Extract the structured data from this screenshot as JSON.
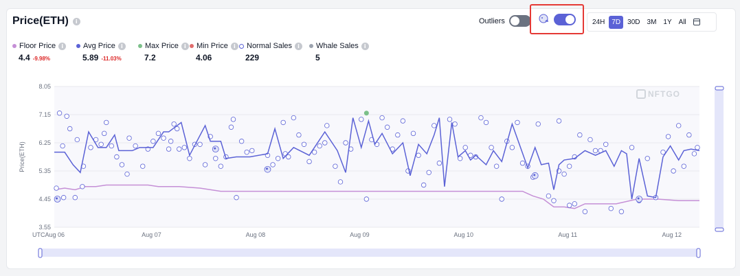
{
  "header": {
    "title": "Price(ETH)",
    "outliers_label": "Outliers",
    "outliers_on": false,
    "whale_toggle_on": true
  },
  "range_tabs": [
    "24H",
    "7D",
    "30D",
    "3M",
    "1Y",
    "All"
  ],
  "active_range": "7D",
  "stats": [
    {
      "name": "Floor Price",
      "value": "4.4",
      "delta": "-9.98%",
      "color": "#c58fd6"
    },
    {
      "name": "Avg Price",
      "value": "5.89",
      "delta": "-11.03%",
      "color": "#5b62d6"
    },
    {
      "name": "Max Price",
      "value": "7.2",
      "delta": "",
      "color": "#7cc08a"
    },
    {
      "name": "Min Price",
      "value": "4.06",
      "delta": "",
      "color": "#e06c6c"
    },
    {
      "name": "Normal Sales",
      "value": "229",
      "delta": "",
      "color": "#5b62d6"
    },
    {
      "name": "Whale Sales",
      "value": "5",
      "delta": "",
      "color": "#9ca3af"
    }
  ],
  "chart_data": {
    "type": "scatter",
    "ylabel": "Price(ETH)",
    "y_ticks": [
      3.55,
      4.45,
      5.35,
      6.25,
      7.15,
      8.05
    ],
    "ylim": [
      3.55,
      8.05
    ],
    "x_ticks": [
      "UTCAug 06",
      "Aug 07",
      "Aug 08",
      "Aug 09",
      "Aug 10",
      "Aug 11",
      "Aug 12"
    ],
    "x_range_days": [
      0,
      6.2
    ],
    "watermark": "NFTGO",
    "grid": true,
    "avg_price": {
      "name": "Avg Price",
      "x": [
        0,
        0.1,
        0.18,
        0.25,
        0.33,
        0.42,
        0.5,
        0.58,
        0.62,
        0.75,
        0.82,
        0.95,
        1.05,
        1.1,
        1.22,
        1.3,
        1.45,
        1.5,
        1.6,
        1.65,
        1.75,
        1.88,
        2.05,
        2.12,
        2.2,
        2.3,
        2.45,
        2.6,
        2.72,
        2.8,
        2.87,
        2.95,
        3.02,
        3.08,
        3.15,
        3.25,
        3.35,
        3.42,
        3.5,
        3.58,
        3.65,
        3.7,
        3.75,
        3.82,
        3.88,
        3.95,
        4.0,
        4.05,
        4.15,
        4.22,
        4.3,
        4.4,
        4.55,
        4.62,
        4.68,
        4.75,
        4.8,
        4.85,
        4.9,
        5.0,
        5.1,
        5.2,
        5.3,
        5.38,
        5.45,
        5.5,
        5.55,
        5.62,
        5.7,
        5.78,
        5.85,
        5.92,
        6.0,
        6.05,
        6.12,
        6.2
      ],
      "y": [
        5.95,
        5.95,
        5.55,
        5.3,
        6.6,
        6.1,
        6.1,
        6.5,
        6.0,
        6.0,
        6.1,
        6.1,
        6.6,
        6.6,
        6.9,
        5.85,
        6.8,
        6.3,
        6.3,
        5.75,
        5.8,
        5.8,
        5.9,
        6.7,
        5.75,
        6.1,
        5.85,
        6.6,
        6.0,
        5.3,
        7.05,
        6.1,
        6.95,
        6.2,
        6.55,
        5.9,
        6.25,
        5.2,
        6.2,
        5.9,
        6.5,
        7.05,
        4.85,
        6.9,
        5.8,
        6.0,
        5.7,
        5.85,
        5.55,
        6.0,
        5.65,
        6.85,
        5.45,
        6.1,
        5.55,
        5.6,
        4.75,
        5.55,
        5.7,
        5.75,
        6.0,
        5.85,
        6.0,
        5.5,
        6.0,
        5.9,
        4.45,
        5.75,
        4.55,
        4.5,
        5.8,
        6.15,
        5.7,
        6.0,
        6.05,
        6.0
      ]
    },
    "floor_price": {
      "name": "Floor Price",
      "x": [
        0,
        0.1,
        0.2,
        0.3,
        0.4,
        0.5,
        0.6,
        0.7,
        0.8,
        0.9,
        1.0,
        1.2,
        1.4,
        1.6,
        2.0,
        2.5,
        3.0,
        3.5,
        4.0,
        4.5,
        4.6,
        4.7,
        4.8,
        4.9,
        5.0,
        5.1,
        5.2,
        5.4,
        5.6,
        5.8,
        6.0,
        6.2
      ],
      "y": [
        4.75,
        4.8,
        4.75,
        4.85,
        4.85,
        4.9,
        4.9,
        4.9,
        4.9,
        4.9,
        4.85,
        4.85,
        4.8,
        4.7,
        4.7,
        4.7,
        4.7,
        4.7,
        4.7,
        4.7,
        4.55,
        4.45,
        4.2,
        4.2,
        4.15,
        4.3,
        4.3,
        4.3,
        4.45,
        4.45,
        4.4,
        4.4
      ]
    },
    "normal_sales": {
      "name": "Normal Sales",
      "points": [
        [
          0.05,
          7.2
        ],
        [
          0.12,
          7.1
        ],
        [
          0.15,
          6.7
        ],
        [
          0.22,
          6.35
        ],
        [
          0.28,
          5.5
        ],
        [
          0.08,
          6.15
        ],
        [
          0.02,
          4.8
        ],
        [
          0.09,
          4.5
        ],
        [
          0.2,
          4.5
        ],
        [
          0.27,
          4.85
        ],
        [
          0.35,
          6.1
        ],
        [
          0.4,
          6.35
        ],
        [
          0.45,
          6.2
        ],
        [
          0.48,
          6.55
        ],
        [
          0.5,
          6.9
        ],
        [
          0.55,
          6.15
        ],
        [
          0.6,
          5.8
        ],
        [
          0.65,
          5.55
        ],
        [
          0.72,
          6.4
        ],
        [
          0.78,
          6.15
        ],
        [
          0.85,
          5.5
        ],
        [
          0.9,
          6.05
        ],
        [
          0.95,
          6.3
        ],
        [
          1.0,
          6.55
        ],
        [
          1.05,
          6.4
        ],
        [
          1.12,
          6.3
        ],
        [
          1.15,
          6.85
        ],
        [
          1.18,
          6.7
        ],
        [
          1.2,
          6.05
        ],
        [
          1.25,
          6.1
        ],
        [
          1.3,
          5.75
        ],
        [
          1.35,
          6.2
        ],
        [
          1.4,
          6.2
        ],
        [
          1.45,
          5.55
        ],
        [
          1.5,
          6.45
        ],
        [
          1.55,
          5.75
        ],
        [
          1.6,
          5.5
        ],
        [
          1.65,
          5.8
        ],
        [
          1.7,
          6.75
        ],
        [
          1.72,
          7.0
        ],
        [
          1.8,
          6.3
        ],
        [
          1.85,
          5.95
        ],
        [
          1.9,
          6.0
        ],
        [
          2.05,
          5.85
        ],
        [
          2.1,
          5.55
        ],
        [
          2.15,
          5.75
        ],
        [
          2.2,
          6.9
        ],
        [
          2.22,
          5.9
        ],
        [
          2.25,
          5.8
        ],
        [
          2.3,
          7.05
        ],
        [
          2.35,
          6.5
        ],
        [
          2.4,
          6.2
        ],
        [
          2.45,
          5.65
        ],
        [
          2.5,
          5.95
        ],
        [
          2.55,
          6.15
        ],
        [
          2.62,
          6.8
        ],
        [
          2.7,
          5.5
        ],
        [
          2.75,
          5.0
        ],
        [
          2.8,
          6.25
        ],
        [
          2.85,
          6.05
        ],
        [
          2.95,
          7.0
        ],
        [
          3.0,
          4.45
        ],
        [
          3.05,
          6.35
        ],
        [
          3.1,
          6.2
        ],
        [
          3.15,
          7.05
        ],
        [
          3.2,
          6.75
        ],
        [
          3.25,
          6.05
        ],
        [
          3.3,
          6.5
        ],
        [
          3.35,
          6.95
        ],
        [
          3.4,
          5.35
        ],
        [
          3.45,
          6.55
        ],
        [
          3.5,
          5.85
        ],
        [
          3.55,
          4.9
        ],
        [
          3.6,
          5.3
        ],
        [
          3.65,
          6.8
        ],
        [
          3.7,
          5.6
        ],
        [
          3.8,
          7.0
        ],
        [
          3.85,
          6.85
        ],
        [
          3.9,
          5.75
        ],
        [
          3.95,
          6.1
        ],
        [
          4.0,
          5.85
        ],
        [
          4.05,
          5.8
        ],
        [
          4.1,
          7.05
        ],
        [
          4.15,
          6.9
        ],
        [
          4.2,
          6.1
        ],
        [
          4.25,
          5.5
        ],
        [
          4.3,
          4.45
        ],
        [
          4.35,
          6.3
        ],
        [
          4.4,
          6.1
        ],
        [
          4.45,
          6.9
        ],
        [
          4.5,
          5.6
        ],
        [
          4.55,
          5.5
        ],
        [
          4.6,
          5.15
        ],
        [
          4.65,
          6.85
        ],
        [
          4.75,
          4.55
        ],
        [
          4.8,
          4.4
        ],
        [
          4.85,
          5.35
        ],
        [
          4.9,
          5.25
        ],
        [
          4.95,
          5.5
        ],
        [
          5.0,
          5.8
        ],
        [
          5.05,
          6.5
        ],
        [
          5.1,
          4.05
        ],
        [
          5.15,
          6.35
        ],
        [
          5.2,
          6.0
        ],
        [
          5.25,
          6.0
        ],
        [
          5.3,
          6.2
        ],
        [
          5.35,
          4.15
        ],
        [
          5.45,
          4.05
        ],
        [
          5.55,
          6.1
        ],
        [
          5.62,
          4.4
        ],
        [
          5.7,
          5.75
        ],
        [
          5.78,
          4.5
        ],
        [
          5.85,
          5.95
        ],
        [
          5.9,
          6.45
        ],
        [
          5.95,
          5.35
        ],
        [
          6.0,
          6.8
        ],
        [
          6.05,
          5.5
        ],
        [
          6.1,
          6.5
        ],
        [
          6.15,
          5.9
        ],
        [
          6.18,
          6.1
        ],
        [
          4.95,
          4.25
        ],
        [
          5.0,
          4.3
        ],
        [
          4.85,
          6.95
        ],
        [
          1.75,
          4.5
        ],
        [
          0.7,
          5.25
        ],
        [
          1.1,
          6.05
        ],
        [
          2.6,
          6.25
        ]
      ]
    },
    "whale_sales": {
      "name": "Whale Sales",
      "points": [
        [
          0.03,
          4.45
        ],
        [
          1.55,
          6.05
        ],
        [
          2.05,
          5.4
        ],
        [
          4.62,
          5.2
        ],
        [
          5.62,
          4.45
        ]
      ]
    },
    "max_point": [
      3.0,
      7.2
    ]
  }
}
